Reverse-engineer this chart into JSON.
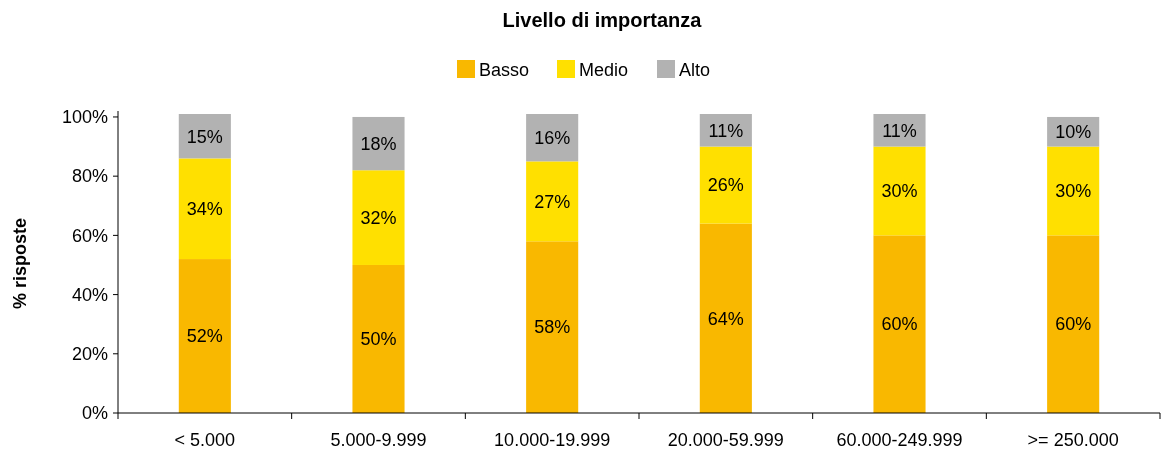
{
  "chart_data": {
    "type": "bar",
    "title": "Livello di importanza",
    "ylabel": "% risposte",
    "stacked": true,
    "legend": "top",
    "categories": [
      "< 5.000",
      "5.000-9.999",
      "10.000-19.999",
      "20.000-59.999",
      "60.000-249.999",
      ">= 250.000"
    ],
    "series": [
      {
        "name": "Basso",
        "color": "#f9b800",
        "values": [
          52,
          50,
          58,
          64,
          60,
          60
        ],
        "value_labels": [
          "52%",
          "50%",
          "58%",
          "64%",
          "60%",
          "60%"
        ]
      },
      {
        "name": "Medio",
        "color": "#ffe000",
        "values": [
          34,
          32,
          27,
          26,
          30,
          30
        ],
        "value_labels": [
          "34%",
          "32%",
          "27%",
          "26%",
          "30%",
          "30%"
        ]
      },
      {
        "name": "Alto",
        "color": "#b2b2b2",
        "values": [
          15,
          18,
          16,
          11,
          11,
          10
        ],
        "value_labels": [
          "15%",
          "18%",
          "16%",
          "11%",
          "11%",
          "10%"
        ]
      }
    ],
    "ylim": [
      0,
      101
    ],
    "yticks": [
      {
        "value": 0,
        "label": "0%"
      },
      {
        "value": 20,
        "label": "20%"
      },
      {
        "value": 40,
        "label": "40%"
      },
      {
        "value": 60,
        "label": "60%"
      },
      {
        "value": 80,
        "label": "80%"
      },
      {
        "value": 100,
        "label": "100%"
      }
    ]
  }
}
